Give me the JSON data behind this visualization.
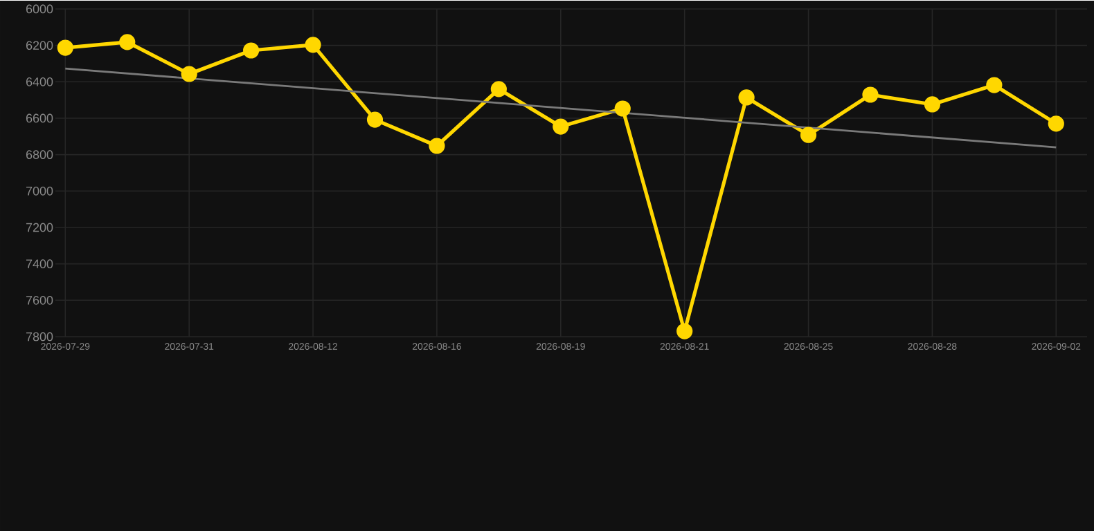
{
  "chart_data": {
    "type": "line",
    "categories": [
      "2026-07-29",
      null,
      "2026-07-31",
      null,
      "2026-08-12",
      null,
      "2026-08-16",
      null,
      "2026-08-19",
      null,
      "2026-08-21",
      null,
      "2026-08-25",
      null,
      "2026-08-28",
      null,
      "2026-09-02"
    ],
    "series": [
      {
        "color": "#ffd700",
        "marker": "circle",
        "values": [
          6213,
          6182,
          6357,
          6228,
          6197,
          6608,
          6752,
          6440,
          6646,
          6547,
          7770,
          6486,
          6692,
          6471,
          6524,
          6418,
          6630
        ]
      },
      {
        "type": "line",
        "color": "#7a7a7a",
        "marker": "none",
        "values": [
          6327,
          null,
          null,
          null,
          null,
          null,
          null,
          null,
          null,
          null,
          null,
          null,
          null,
          null,
          null,
          null,
          6760
        ]
      }
    ],
    "ylim": [
      7800,
      6000
    ],
    "yticks": [
      6000,
      6200,
      6400,
      6600,
      6800,
      7000,
      7200,
      7400,
      7600,
      7800
    ],
    "grid": true,
    "line_style": "solid"
  }
}
